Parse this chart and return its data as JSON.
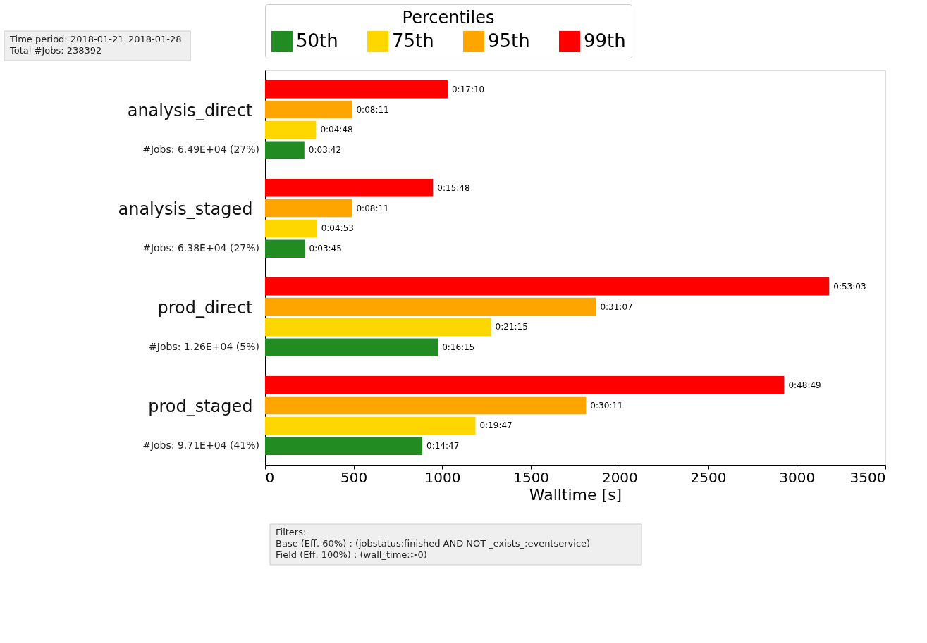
{
  "chart_data": {
    "type": "bar",
    "orientation": "horizontal",
    "xlabel": "Walltime [s]",
    "legend_title": "Percentiles",
    "legend": "top",
    "grid": false,
    "categories": [
      "analysis_direct",
      "analysis_staged",
      "prod_direct",
      "prod_staged"
    ],
    "series": [
      {
        "name": "50th",
        "color": "#228b22",
        "values": [
          222,
          225,
          975,
          887
        ],
        "value_labels": [
          "0:03:42",
          "0:03:45",
          "0:16:15",
          "0:14:47"
        ]
      },
      {
        "name": "75th",
        "color": "#ffd700",
        "values": [
          288,
          293,
          1275,
          1187
        ],
        "value_labels": [
          "0:04:48",
          "0:04:53",
          "0:21:15",
          "0:19:47"
        ]
      },
      {
        "name": "95th",
        "color": "#ffa500",
        "values": [
          491,
          491,
          1867,
          1811
        ],
        "value_labels": [
          "0:08:11",
          "0:08:11",
          "0:31:07",
          "0:30:11"
        ]
      },
      {
        "name": "99th",
        "color": "#ff0000",
        "values": [
          1030,
          948,
          3183,
          2929
        ],
        "value_labels": [
          "0:17:10",
          "0:15:48",
          "0:53:03",
          "0:48:49"
        ]
      }
    ],
    "xlim": [
      0,
      3500
    ],
    "xticks": [
      0,
      500,
      1000,
      1500,
      2000,
      2500,
      3000,
      3500
    ],
    "annotations": [
      "Time period: 2018-01-21_2018-01-28\nTotal #Jobs: 238392",
      "Filters:\n  Base (Eff. 60%) : (jobstatus:finished AND NOT _exists_:eventservice)\n  Field (Eff. 100%) : (wall_time:>0)",
      "#Jobs: 6.49E+04 (27%)",
      "#Jobs: 6.38E+04 (27%)",
      "#Jobs: 1.26E+04 (5%)",
      "#Jobs: 9.71E+04 (41%)"
    ]
  }
}
